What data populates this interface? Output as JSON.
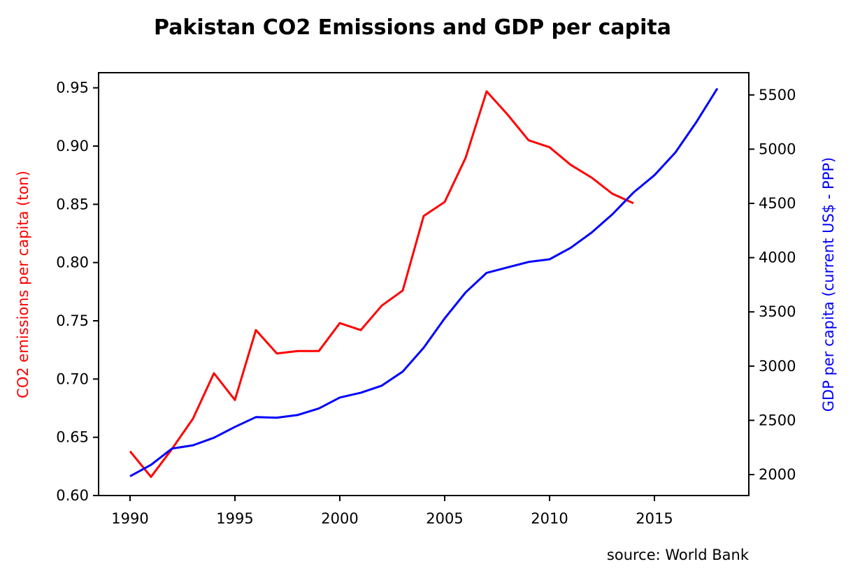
{
  "chart_data": {
    "type": "line",
    "title": "Pakistan CO2 Emissions and GDP per capita",
    "source": "source: World Bank",
    "xlabel": "",
    "xlim": [
      1988.5,
      2019.5
    ],
    "xticks": [
      1990,
      1995,
      2000,
      2005,
      2010,
      2015
    ],
    "y_left": {
      "label": "CO2 emissions per capita (ton)",
      "color": "#ff0000",
      "lim": [
        0.6,
        0.963
      ],
      "ticks": [
        0.6,
        0.65,
        0.7,
        0.75,
        0.8,
        0.85,
        0.9,
        0.95
      ],
      "tick_labels": [
        "0.60",
        "0.65",
        "0.70",
        "0.75",
        "0.80",
        "0.85",
        "0.90",
        "0.95"
      ]
    },
    "y_right": {
      "label": "GDP per capita (current US$ - PPP)",
      "color": "#0000ff",
      "lim": [
        1807,
        5705
      ],
      "ticks": [
        2000,
        2500,
        3000,
        3500,
        4000,
        4500,
        5000,
        5500
      ],
      "tick_labels": [
        "2000",
        "2500",
        "3000",
        "3500",
        "4000",
        "4500",
        "5000",
        "5500"
      ]
    },
    "series": [
      {
        "axis": "left",
        "color": "#ff0000",
        "x": [
          1990,
          1991,
          1992,
          1993,
          1994,
          1995,
          1996,
          1997,
          1998,
          1999,
          2000,
          2001,
          2002,
          2003,
          2004,
          2005,
          2006,
          2007,
          2008,
          2009,
          2010,
          2011,
          2012,
          2013,
          2014
        ],
        "values": [
          0.638,
          0.616,
          0.64,
          0.666,
          0.705,
          0.682,
          0.742,
          0.722,
          0.724,
          0.724,
          0.748,
          0.742,
          0.763,
          0.776,
          0.84,
          0.852,
          0.89,
          0.947,
          0.927,
          0.905,
          0.899,
          0.884,
          0.873,
          0.859,
          0.851
        ]
      },
      {
        "axis": "right",
        "color": "#0000ff",
        "x": [
          1990,
          1991,
          1992,
          1993,
          1994,
          1995,
          1996,
          1997,
          1998,
          1999,
          2000,
          2001,
          2002,
          2003,
          2004,
          2005,
          2006,
          2007,
          2008,
          2009,
          2010,
          2011,
          2012,
          2013,
          2014,
          2015,
          2016,
          2017,
          2018
        ],
        "values": [
          1985,
          2090,
          2240,
          2270,
          2340,
          2440,
          2530,
          2525,
          2550,
          2610,
          2710,
          2755,
          2820,
          2950,
          3170,
          3440,
          3680,
          3860,
          3910,
          3960,
          3985,
          4090,
          4230,
          4400,
          4600,
          4760,
          4970,
          5250,
          5560
        ]
      }
    ]
  }
}
